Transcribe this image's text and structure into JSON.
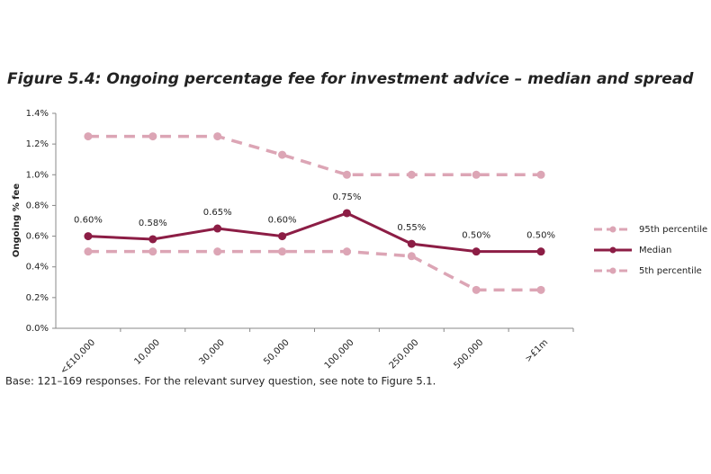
{
  "chart_data": {
    "type": "line",
    "title": "Figure 5.4: Ongoing percentage fee for investment advice – median and spread",
    "ylabel": "Ongoing % fee",
    "footnote": "Base: 121–169 responses. For the relevant survey question, see note to Figure 5.1.",
    "categories": [
      "<£10,000",
      "10,000",
      "30,000",
      "50,000",
      "100,000",
      "250,000",
      "500,000",
      ">£1m"
    ],
    "series": [
      {
        "name": "95th percentile",
        "color": "#dca5b5",
        "dashed": true,
        "values": [
          1.25,
          1.25,
          1.25,
          1.13,
          1.0,
          1.0,
          1.0,
          1.0
        ]
      },
      {
        "name": "Median",
        "color": "#8c1d45",
        "dashed": false,
        "values": [
          0.6,
          0.58,
          0.65,
          0.6,
          0.75,
          0.55,
          0.5,
          0.5
        ],
        "value_labels": [
          "0.60%",
          "0.58%",
          "0.65%",
          "0.60%",
          "0.75%",
          "0.55%",
          "0.50%",
          "0.50%"
        ]
      },
      {
        "name": "5th percentile",
        "color": "#dca5b5",
        "dashed": true,
        "values": [
          0.5,
          0.5,
          0.5,
          0.5,
          0.5,
          0.47,
          0.25,
          0.25
        ]
      }
    ],
    "ylim": [
      0,
      1.4
    ],
    "yticks": [
      {
        "value": 0,
        "label": "0.0%"
      },
      {
        "value": 0.2,
        "label": "0.2%"
      },
      {
        "value": 0.4,
        "label": "0.4%"
      },
      {
        "value": 0.6,
        "label": "0.6%"
      },
      {
        "value": 0.8,
        "label": "0.8%"
      },
      {
        "value": 1.0,
        "label": "1.0%"
      },
      {
        "value": 1.2,
        "label": "1.2%"
      },
      {
        "value": 1.4,
        "label": "1.4%"
      }
    ],
    "legend": "right"
  }
}
